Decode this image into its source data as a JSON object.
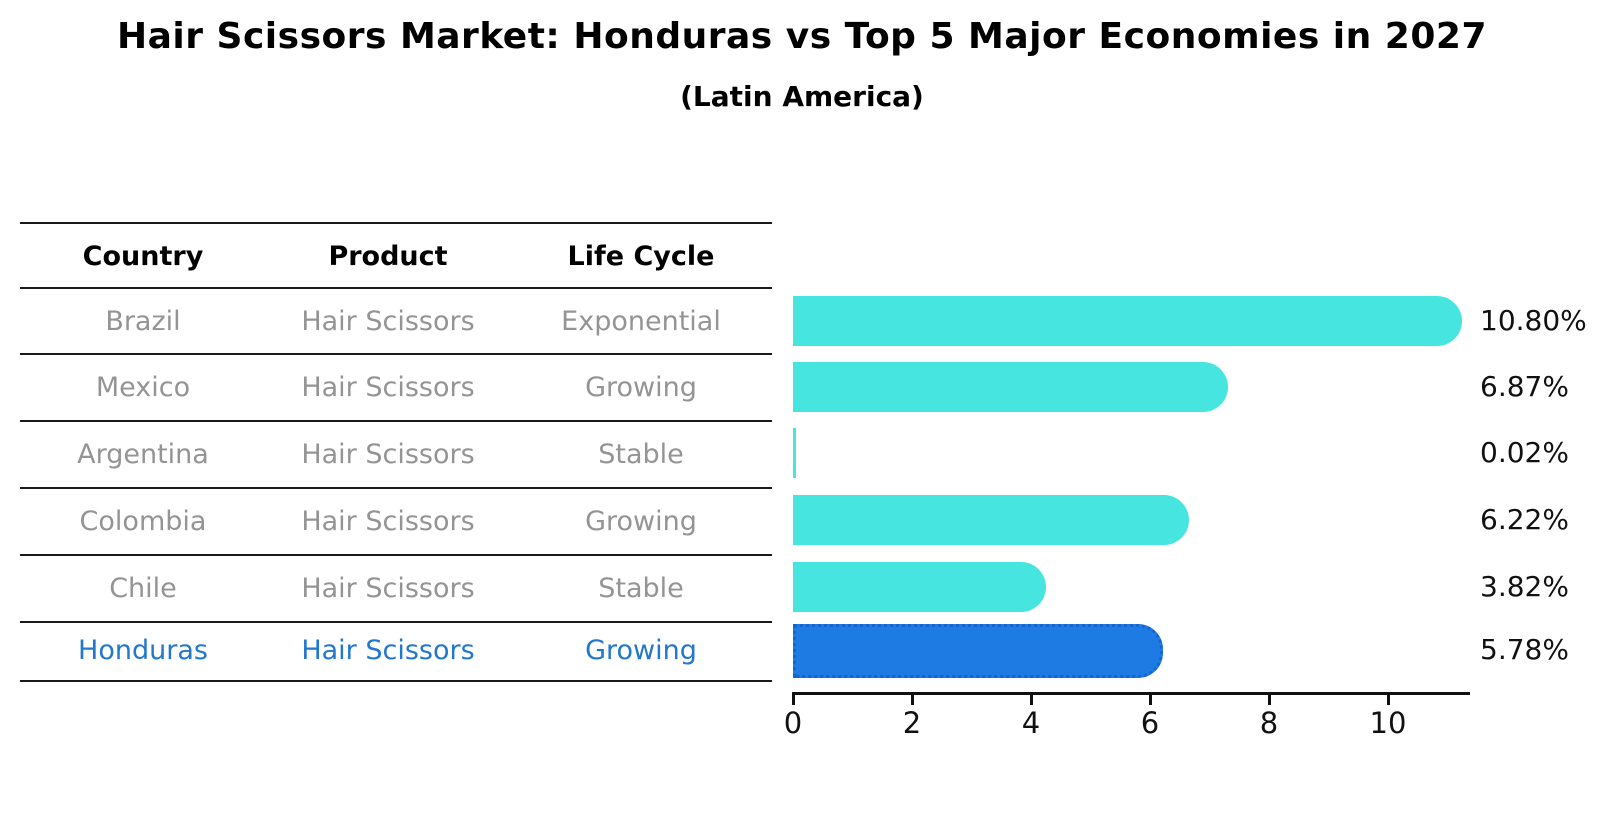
{
  "title": "Hair Scissors Market: Honduras vs Top 5 Major Economies in 2027",
  "subtitle": "(Latin America)",
  "table": {
    "headers": [
      "Country",
      "Product",
      "Life Cycle"
    ],
    "rows": [
      {
        "country": "Brazil",
        "product": "Hair Scissors",
        "life_cycle": "Exponential",
        "highlight": false
      },
      {
        "country": "Mexico",
        "product": "Hair Scissors",
        "life_cycle": "Growing",
        "highlight": false
      },
      {
        "country": "Argentina",
        "product": "Hair Scissors",
        "life_cycle": "Stable",
        "highlight": false
      },
      {
        "country": "Colombia",
        "product": "Hair Scissors",
        "life_cycle": "Growing",
        "highlight": false
      },
      {
        "country": "Chile",
        "product": "Hair Scissors",
        "life_cycle": "Stable",
        "highlight": false
      },
      {
        "country": "Honduras",
        "product": "Hair Scissors",
        "life_cycle": "Growing",
        "highlight": true
      }
    ]
  },
  "chart_data": {
    "type": "bar",
    "orientation": "horizontal",
    "categories": [
      "Brazil",
      "Mexico",
      "Argentina",
      "Colombia",
      "Chile",
      "Honduras"
    ],
    "values": [
      10.8,
      6.87,
      0.02,
      6.22,
      3.82,
      5.78
    ],
    "value_labels": [
      "10.80%",
      "6.87%",
      "0.02%",
      "6.22%",
      "3.82%",
      "5.78%"
    ],
    "x_ticks": [
      0,
      2,
      4,
      6,
      8,
      10
    ],
    "xlim": [
      0,
      11.4
    ],
    "grid": false,
    "legend": "none",
    "highlight_index": 5,
    "colors": {
      "bar": "#46E5E0",
      "highlight_bar": "#1E7BE4",
      "highlight_border": "#1464D2",
      "highlight_text": "#2277CE",
      "row_text": "#949494",
      "header_text": "#000000",
      "axis": "#111111"
    }
  }
}
